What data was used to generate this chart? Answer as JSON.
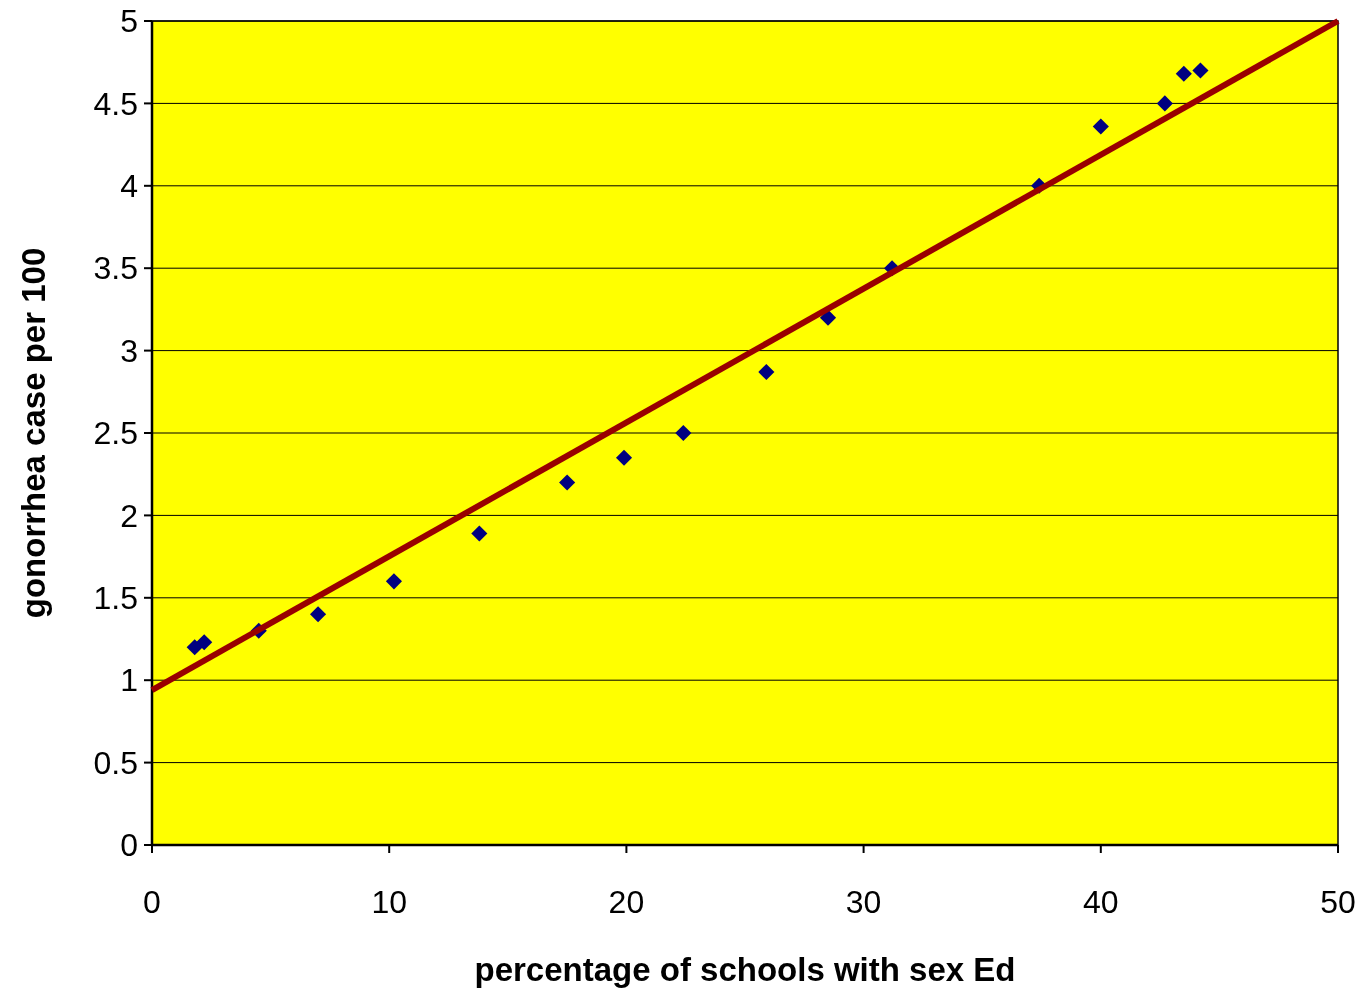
{
  "chart_data": {
    "type": "scatter",
    "xlabel": "percentage of schools with sex Ed",
    "ylabel": "gonorrhea case per 100",
    "xlim": [
      0,
      50
    ],
    "xticks": [
      0,
      10,
      20,
      30,
      40,
      50
    ],
    "ylim": [
      0,
      5
    ],
    "yticks": [
      0,
      0.5,
      1,
      1.5,
      2,
      2.5,
      3,
      3.5,
      4,
      4.5,
      5
    ],
    "grid": "y",
    "series": [
      {
        "color": "#000080",
        "marker": "diamond",
        "x": [
          1.8,
          2.2,
          4.5,
          7,
          10.2,
          13.8,
          17.5,
          19.9,
          22.4,
          25.9,
          28.5,
          31.2,
          37.4,
          40,
          42.7,
          43.5,
          44.2
        ],
        "values": [
          1.2,
          1.23,
          1.3,
          1.4,
          1.6,
          1.89,
          2.2,
          2.35,
          2.5,
          2.87,
          3.2,
          3.5,
          4,
          4.36,
          4.5,
          4.68,
          4.7
        ]
      },
      {
        "type": "line",
        "color": "#990000",
        "marker": "none",
        "x": [
          0,
          50
        ],
        "values": [
          0.94,
          5
        ]
      }
    ]
  }
}
